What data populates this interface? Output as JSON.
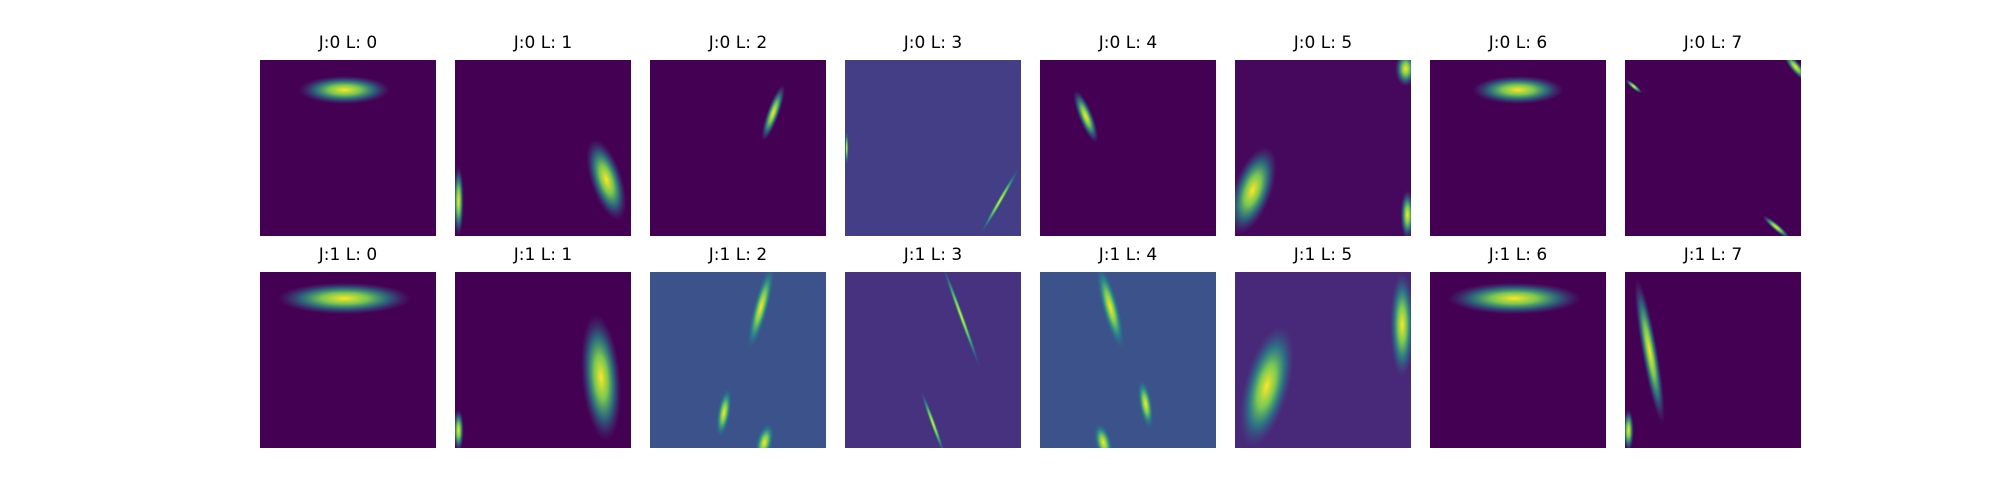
{
  "rows": [
    [
      "J:0 L: 0",
      "J:0 L: 1",
      "J:0 L: 2",
      "J:0 L: 3",
      "J:0 L: 4",
      "J:0 L: 5",
      "J:0 L: 6",
      "J:0 L: 7"
    ],
    [
      "J:1 L: 0",
      "J:1 L: 1",
      "J:1 L: 2",
      "J:1 L: 3",
      "J:1 L: 4",
      "J:1 L: 5",
      "J:1 L: 6",
      "J:1 L: 7"
    ]
  ]
}
